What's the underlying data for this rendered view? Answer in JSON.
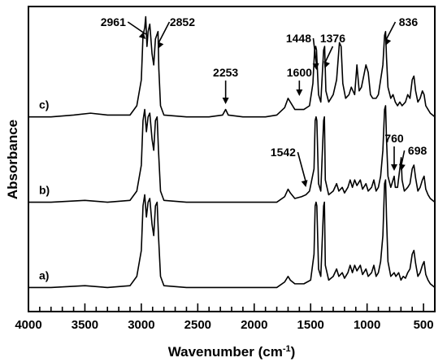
{
  "chart_data": {
    "type": "line",
    "title": "",
    "xlabel": "Wavenumber",
    "xlabel_unit_base": "cm",
    "xlabel_unit_exp": "-1",
    "ylabel": "Absorbance",
    "xlim": [
      4000,
      400
    ],
    "x_reversed": true,
    "y_ticks_labeled": false,
    "grid": false,
    "x_ticks": [
      {
        "value": 4000,
        "label": "4000"
      },
      {
        "value": 3500,
        "label": "3500"
      },
      {
        "value": 3000,
        "label": "3000"
      },
      {
        "value": 2500,
        "label": "2500"
      },
      {
        "value": 2000,
        "label": "2000"
      },
      {
        "value": 1500,
        "label": "1500"
      },
      {
        "value": 1000,
        "label": "1000"
      },
      {
        "value": 500,
        "label": "500"
      }
    ],
    "series": [
      {
        "label": "a)",
        "offset": 0.0,
        "baseline": 0.02,
        "points": [
          [
            4000,
            0.02
          ],
          [
            3800,
            0.02
          ],
          [
            3500,
            0.03
          ],
          [
            3300,
            0.02
          ],
          [
            3100,
            0.03
          ],
          [
            3040,
            0.08
          ],
          [
            3000,
            0.22
          ],
          [
            2985,
            0.46
          ],
          [
            2970,
            0.52
          ],
          [
            2955,
            0.4
          ],
          [
            2940,
            0.48
          ],
          [
            2925,
            0.5
          ],
          [
            2905,
            0.36
          ],
          [
            2890,
            0.3
          ],
          [
            2875,
            0.46
          ],
          [
            2860,
            0.48
          ],
          [
            2848,
            0.3
          ],
          [
            2830,
            0.08
          ],
          [
            2800,
            0.03
          ],
          [
            2600,
            0.02
          ],
          [
            2300,
            0.02
          ],
          [
            2000,
            0.02
          ],
          [
            1800,
            0.02
          ],
          [
            1730,
            0.05
          ],
          [
            1700,
            0.08
          ],
          [
            1680,
            0.06
          ],
          [
            1640,
            0.04
          ],
          [
            1560,
            0.04
          ],
          [
            1500,
            0.06
          ],
          [
            1470,
            0.2
          ],
          [
            1460,
            0.46
          ],
          [
            1452,
            0.48
          ],
          [
            1445,
            0.46
          ],
          [
            1430,
            0.12
          ],
          [
            1410,
            0.08
          ],
          [
            1385,
            0.46
          ],
          [
            1378,
            0.48
          ],
          [
            1370,
            0.14
          ],
          [
            1340,
            0.06
          ],
          [
            1300,
            0.08
          ],
          [
            1270,
            0.12
          ],
          [
            1250,
            0.08
          ],
          [
            1220,
            0.1
          ],
          [
            1200,
            0.07
          ],
          [
            1170,
            0.1
          ],
          [
            1150,
            0.14
          ],
          [
            1130,
            0.1
          ],
          [
            1110,
            0.14
          ],
          [
            1090,
            0.11
          ],
          [
            1060,
            0.14
          ],
          [
            1040,
            0.09
          ],
          [
            1010,
            0.12
          ],
          [
            990,
            0.08
          ],
          [
            960,
            0.1
          ],
          [
            940,
            0.14
          ],
          [
            920,
            0.08
          ],
          [
            900,
            0.1
          ],
          [
            880,
            0.16
          ],
          [
            860,
            0.3
          ],
          [
            845,
            0.58
          ],
          [
            836,
            0.6
          ],
          [
            828,
            0.4
          ],
          [
            815,
            0.16
          ],
          [
            790,
            0.08
          ],
          [
            760,
            0.1
          ],
          [
            745,
            0.08
          ],
          [
            720,
            0.1
          ],
          [
            700,
            0.06
          ],
          [
            680,
            0.08
          ],
          [
            660,
            0.07
          ],
          [
            640,
            0.1
          ],
          [
            620,
            0.12
          ],
          [
            600,
            0.2
          ],
          [
            585,
            0.22
          ],
          [
            570,
            0.15
          ],
          [
            550,
            0.08
          ],
          [
            530,
            0.1
          ],
          [
            510,
            0.14
          ],
          [
            495,
            0.16
          ],
          [
            480,
            0.09
          ],
          [
            460,
            0.06
          ],
          [
            440,
            0.04
          ],
          [
            420,
            0.03
          ],
          [
            400,
            0.02
          ]
        ]
      },
      {
        "label": "b)",
        "offset": 0.46,
        "baseline": 0.02,
        "points": [
          [
            4000,
            0.02
          ],
          [
            3800,
            0.02
          ],
          [
            3500,
            0.03
          ],
          [
            3300,
            0.02
          ],
          [
            3100,
            0.03
          ],
          [
            3040,
            0.08
          ],
          [
            3000,
            0.22
          ],
          [
            2985,
            0.46
          ],
          [
            2970,
            0.52
          ],
          [
            2955,
            0.4
          ],
          [
            2940,
            0.48
          ],
          [
            2925,
            0.5
          ],
          [
            2905,
            0.36
          ],
          [
            2890,
            0.3
          ],
          [
            2875,
            0.46
          ],
          [
            2860,
            0.48
          ],
          [
            2848,
            0.3
          ],
          [
            2830,
            0.08
          ],
          [
            2800,
            0.03
          ],
          [
            2600,
            0.02
          ],
          [
            2300,
            0.02
          ],
          [
            2000,
            0.02
          ],
          [
            1800,
            0.02
          ],
          [
            1730,
            0.05
          ],
          [
            1700,
            0.09
          ],
          [
            1680,
            0.07
          ],
          [
            1640,
            0.04
          ],
          [
            1580,
            0.05
          ],
          [
            1542,
            0.06
          ],
          [
            1510,
            0.08
          ],
          [
            1470,
            0.2
          ],
          [
            1460,
            0.46
          ],
          [
            1452,
            0.48
          ],
          [
            1445,
            0.46
          ],
          [
            1430,
            0.12
          ],
          [
            1410,
            0.08
          ],
          [
            1385,
            0.46
          ],
          [
            1378,
            0.48
          ],
          [
            1370,
            0.14
          ],
          [
            1340,
            0.06
          ],
          [
            1300,
            0.08
          ],
          [
            1270,
            0.12
          ],
          [
            1250,
            0.08
          ],
          [
            1220,
            0.1
          ],
          [
            1200,
            0.07
          ],
          [
            1170,
            0.1
          ],
          [
            1150,
            0.14
          ],
          [
            1130,
            0.1
          ],
          [
            1110,
            0.14
          ],
          [
            1090,
            0.11
          ],
          [
            1060,
            0.14
          ],
          [
            1040,
            0.09
          ],
          [
            1010,
            0.12
          ],
          [
            990,
            0.08
          ],
          [
            960,
            0.1
          ],
          [
            940,
            0.14
          ],
          [
            920,
            0.08
          ],
          [
            900,
            0.1
          ],
          [
            880,
            0.16
          ],
          [
            860,
            0.3
          ],
          [
            845,
            0.52
          ],
          [
            836,
            0.54
          ],
          [
            828,
            0.36
          ],
          [
            815,
            0.16
          ],
          [
            790,
            0.1
          ],
          [
            770,
            0.14
          ],
          [
            760,
            0.16
          ],
          [
            750,
            0.1
          ],
          [
            730,
            0.1
          ],
          [
            710,
            0.2
          ],
          [
            698,
            0.26
          ],
          [
            690,
            0.14
          ],
          [
            670,
            0.08
          ],
          [
            640,
            0.1
          ],
          [
            620,
            0.12
          ],
          [
            600,
            0.2
          ],
          [
            585,
            0.22
          ],
          [
            570,
            0.15
          ],
          [
            550,
            0.08
          ],
          [
            530,
            0.1
          ],
          [
            510,
            0.14
          ],
          [
            495,
            0.16
          ],
          [
            480,
            0.09
          ],
          [
            460,
            0.06
          ],
          [
            440,
            0.04
          ],
          [
            420,
            0.03
          ],
          [
            400,
            0.02
          ]
        ]
      },
      {
        "label": "c)",
        "offset": 0.92,
        "baseline": 0.02,
        "points": [
          [
            4000,
            0.02
          ],
          [
            3800,
            0.02
          ],
          [
            3600,
            0.03
          ],
          [
            3450,
            0.04
          ],
          [
            3300,
            0.03
          ],
          [
            3100,
            0.03
          ],
          [
            3040,
            0.08
          ],
          [
            3000,
            0.22
          ],
          [
            2985,
            0.46
          ],
          [
            2970,
            0.5
          ],
          [
            2961,
            0.56
          ],
          [
            2950,
            0.4
          ],
          [
            2940,
            0.48
          ],
          [
            2925,
            0.52
          ],
          [
            2905,
            0.36
          ],
          [
            2890,
            0.3
          ],
          [
            2875,
            0.44
          ],
          [
            2852,
            0.48
          ],
          [
            2845,
            0.28
          ],
          [
            2830,
            0.08
          ],
          [
            2800,
            0.03
          ],
          [
            2600,
            0.02
          ],
          [
            2400,
            0.02
          ],
          [
            2280,
            0.03
          ],
          [
            2253,
            0.06
          ],
          [
            2230,
            0.03
          ],
          [
            2100,
            0.02
          ],
          [
            1900,
            0.02
          ],
          [
            1800,
            0.03
          ],
          [
            1730,
            0.07
          ],
          [
            1700,
            0.12
          ],
          [
            1680,
            0.1
          ],
          [
            1640,
            0.06
          ],
          [
            1560,
            0.06
          ],
          [
            1510,
            0.08
          ],
          [
            1480,
            0.2
          ],
          [
            1465,
            0.38
          ],
          [
            1455,
            0.4
          ],
          [
            1448,
            0.38
          ],
          [
            1430,
            0.14
          ],
          [
            1410,
            0.1
          ],
          [
            1385,
            0.38
          ],
          [
            1376,
            0.4
          ],
          [
            1365,
            0.16
          ],
          [
            1340,
            0.1
          ],
          [
            1300,
            0.14
          ],
          [
            1270,
            0.22
          ],
          [
            1245,
            0.42
          ],
          [
            1230,
            0.4
          ],
          [
            1215,
            0.2
          ],
          [
            1190,
            0.12
          ],
          [
            1160,
            0.14
          ],
          [
            1140,
            0.18
          ],
          [
            1110,
            0.14
          ],
          [
            1090,
            0.3
          ],
          [
            1070,
            0.16
          ],
          [
            1050,
            0.18
          ],
          [
            1030,
            0.24
          ],
          [
            1010,
            0.3
          ],
          [
            990,
            0.26
          ],
          [
            970,
            0.14
          ],
          [
            950,
            0.12
          ],
          [
            920,
            0.12
          ],
          [
            900,
            0.14
          ],
          [
            880,
            0.22
          ],
          [
            860,
            0.3
          ],
          [
            845,
            0.46
          ],
          [
            836,
            0.48
          ],
          [
            828,
            0.34
          ],
          [
            815,
            0.18
          ],
          [
            790,
            0.12
          ],
          [
            770,
            0.14
          ],
          [
            750,
            0.1
          ],
          [
            730,
            0.08
          ],
          [
            710,
            0.1
          ],
          [
            690,
            0.08
          ],
          [
            660,
            0.1
          ],
          [
            640,
            0.14
          ],
          [
            620,
            0.12
          ],
          [
            600,
            0.22
          ],
          [
            585,
            0.24
          ],
          [
            570,
            0.16
          ],
          [
            550,
            0.1
          ],
          [
            530,
            0.12
          ],
          [
            510,
            0.16
          ],
          [
            495,
            0.14
          ],
          [
            480,
            0.08
          ],
          [
            460,
            0.06
          ],
          [
            440,
            0.04
          ],
          [
            420,
            0.03
          ],
          [
            400,
            0.02
          ]
        ]
      }
    ],
    "annotations": [
      {
        "text": "2961",
        "series": 2,
        "x": 2961
      },
      {
        "text": "2852",
        "series": 2,
        "x": 2852
      },
      {
        "text": "2253",
        "series": 2,
        "x": 2253
      },
      {
        "text": "1600",
        "series": 2,
        "x": 1600
      },
      {
        "text": "1448",
        "series": 2,
        "x": 1448
      },
      {
        "text": "1376",
        "series": 2,
        "x": 1376
      },
      {
        "text": "836",
        "series": 2,
        "x": 836
      },
      {
        "text": "1542",
        "series": 1,
        "x": 1542
      },
      {
        "text": "760",
        "series": 1,
        "x": 760
      },
      {
        "text": "698",
        "series": 1,
        "x": 698
      }
    ]
  }
}
